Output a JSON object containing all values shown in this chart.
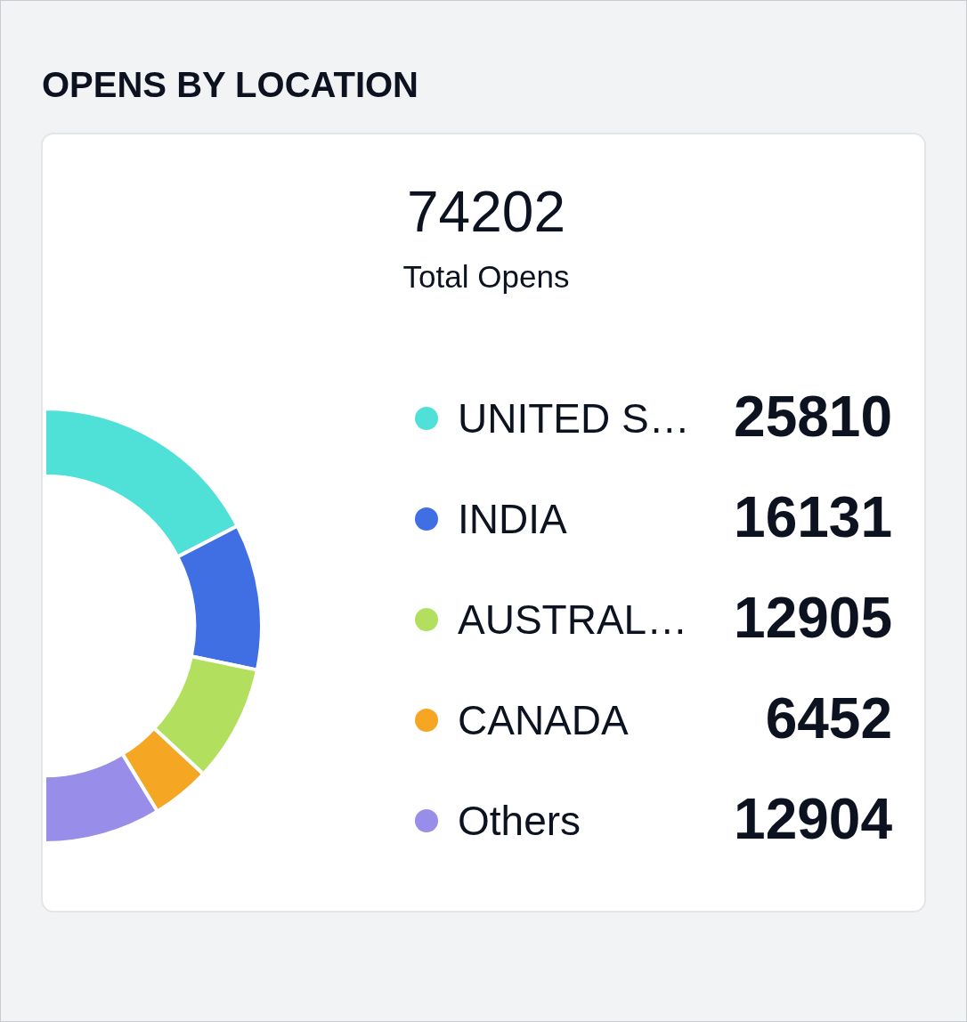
{
  "chart_data": {
    "type": "donut",
    "title": "OPENS BY LOCATION",
    "annotations": [
      "74202",
      "Total Opens"
    ],
    "categories": [
      "UNITED S…",
      "INDIA",
      "AUSTRAL…",
      "CANADA",
      "Others"
    ],
    "values": [
      25810,
      16131,
      12905,
      6452,
      12904
    ],
    "colors": [
      "#4fe0d8",
      "#3f6fe3",
      "#b2e05e",
      "#f5a623",
      "#988de8"
    ],
    "data_labels": true,
    "legend": "right"
  }
}
